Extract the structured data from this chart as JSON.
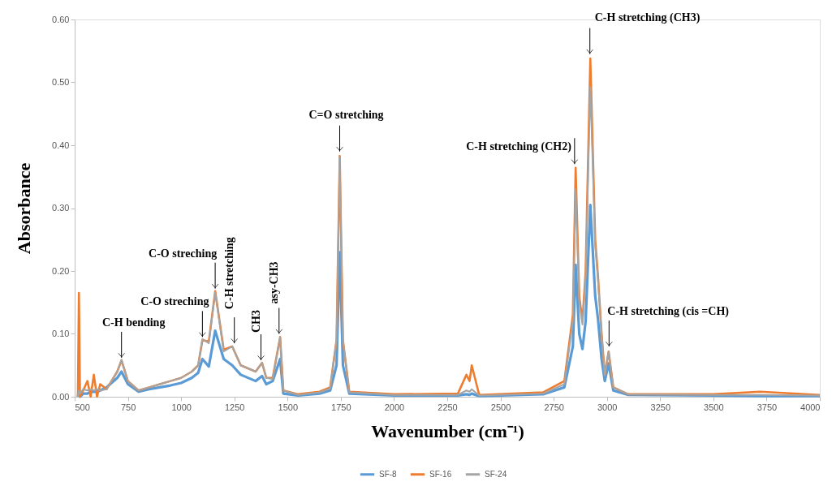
{
  "chart_data": {
    "type": "line",
    "xlabel": "Wavenumber (cm⁻¹)",
    "ylabel": "Absorbance",
    "x": [
      515,
      520,
      525,
      540,
      560,
      575,
      590,
      605,
      620,
      650,
      700,
      720,
      750,
      800,
      850,
      900,
      950,
      1000,
      1050,
      1080,
      1100,
      1130,
      1160,
      1200,
      1240,
      1280,
      1350,
      1380,
      1400,
      1430,
      1465,
      1480,
      1550,
      1650,
      1700,
      1730,
      1745,
      1760,
      1790,
      2000,
      2300,
      2340,
      2355,
      2365,
      2400,
      2700,
      2800,
      2840,
      2853,
      2870,
      2885,
      2900,
      2922,
      2945,
      2958,
      2975,
      2990,
      3008,
      3030,
      3100,
      3500,
      3720,
      4000
    ],
    "series": [
      {
        "name": "SF-8",
        "color": "#5b9bd5",
        "values": [
          0.0,
          0.01,
          0.0,
          0.005,
          0.005,
          0.008,
          0.008,
          0.008,
          0.01,
          0.015,
          0.03,
          0.04,
          0.02,
          0.008,
          0.012,
          0.015,
          0.018,
          0.022,
          0.03,
          0.038,
          0.06,
          0.048,
          0.105,
          0.06,
          0.05,
          0.035,
          0.025,
          0.033,
          0.02,
          0.025,
          0.06,
          0.005,
          0.002,
          0.005,
          0.01,
          0.05,
          0.23,
          0.05,
          0.005,
          0.002,
          0.002,
          0.004,
          0.003,
          0.005,
          0.001,
          0.004,
          0.015,
          0.08,
          0.21,
          0.1,
          0.076,
          0.12,
          0.305,
          0.16,
          0.124,
          0.06,
          0.025,
          0.053,
          0.01,
          0.003,
          0.002,
          0.001,
          0.001
        ]
      },
      {
        "name": "SF-16",
        "color": "#ed7d31",
        "values": [
          0.0,
          0.165,
          0.0,
          0.01,
          0.025,
          0.0,
          0.035,
          0.0,
          0.02,
          0.012,
          0.04,
          0.058,
          0.025,
          0.01,
          0.015,
          0.02,
          0.025,
          0.03,
          0.04,
          0.05,
          0.09,
          0.088,
          0.168,
          0.075,
          0.08,
          0.05,
          0.04,
          0.054,
          0.03,
          0.03,
          0.095,
          0.01,
          0.004,
          0.008,
          0.015,
          0.09,
          0.383,
          0.09,
          0.008,
          0.004,
          0.005,
          0.035,
          0.025,
          0.05,
          0.003,
          0.007,
          0.025,
          0.13,
          0.364,
          0.16,
          0.12,
          0.2,
          0.538,
          0.25,
          0.192,
          0.1,
          0.035,
          0.072,
          0.015,
          0.004,
          0.004,
          0.008,
          0.003
        ]
      },
      {
        "name": "SF-24",
        "color": "#a5a5a5",
        "values": [
          0.0,
          0.01,
          0.005,
          0.012,
          0.01,
          0.012,
          0.01,
          0.012,
          0.01,
          0.012,
          0.04,
          0.059,
          0.025,
          0.01,
          0.015,
          0.02,
          0.025,
          0.03,
          0.04,
          0.05,
          0.092,
          0.085,
          0.166,
          0.072,
          0.08,
          0.05,
          0.04,
          0.054,
          0.03,
          0.028,
          0.095,
          0.01,
          0.003,
          0.007,
          0.013,
          0.09,
          0.38,
          0.09,
          0.007,
          0.003,
          0.003,
          0.01,
          0.008,
          0.012,
          0.002,
          0.005,
          0.02,
          0.12,
          0.33,
          0.15,
          0.115,
          0.19,
          0.493,
          0.24,
          0.185,
          0.1,
          0.034,
          0.072,
          0.015,
          0.004,
          0.003,
          0.003,
          0.002
        ]
      }
    ],
    "xlim": [
      500,
      4000
    ],
    "xticks": [
      500,
      750,
      1000,
      1250,
      1500,
      1750,
      2000,
      2250,
      2500,
      2750,
      3000,
      3250,
      3500,
      3750,
      4000
    ],
    "ylim": [
      0,
      0.6
    ],
    "yticks": [
      {
        "value": 0,
        "label": "0.00"
      },
      {
        "value": 0.1,
        "label": "0.10"
      },
      {
        "value": 0.2,
        "label": "0.20"
      },
      {
        "value": 0.3,
        "label": "0.30"
      },
      {
        "value": 0.4,
        "label": "0.40"
      },
      {
        "value": 0.5,
        "label": "0.50"
      },
      {
        "value": 0.6,
        "label": "0.60"
      }
    ],
    "grid": false,
    "legend": "bottom",
    "marker": "none",
    "line_style": "solid",
    "annotations": [
      {
        "text": "C-H bending",
        "x": 720,
        "y": 0.062
      },
      {
        "text": "C-O streching",
        "x": 1100,
        "y": 0.095
      },
      {
        "text": "C-O streching",
        "x": 1160,
        "y": 0.172
      },
      {
        "text": "C-H stretching",
        "x": 1250,
        "y": 0.085
      },
      {
        "text": "CH3",
        "x": 1375,
        "y": 0.058
      },
      {
        "text": "asy-CH3",
        "x": 1460,
        "y": 0.1
      },
      {
        "text": "C=O stretching",
        "x": 1745,
        "y": 0.39
      },
      {
        "text": "C-H stretching (CH2)",
        "x": 2848,
        "y": 0.37
      },
      {
        "text": "C-H stretching (CH3)",
        "x": 2920,
        "y": 0.545
      },
      {
        "text": "C-H stretching (cis =CH)",
        "x": 3010,
        "y": 0.08
      }
    ]
  }
}
